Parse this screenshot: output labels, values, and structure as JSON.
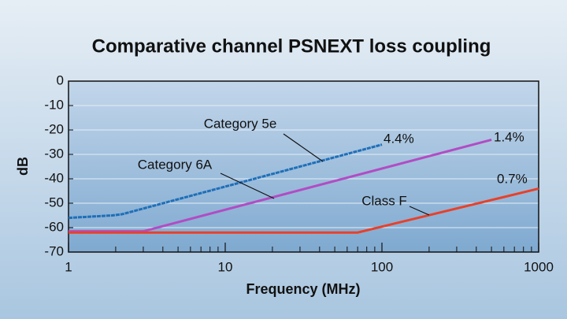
{
  "chart_data": {
    "type": "line",
    "title": "Comparative channel PSNEXT loss coupling",
    "xlabel": "Frequency (MHz)",
    "ylabel": "dB",
    "xscale": "log",
    "xlim": [
      1,
      1000
    ],
    "xticks": [
      1,
      10,
      100,
      1000
    ],
    "xminorticks": [
      2,
      3,
      4,
      5,
      6,
      7,
      8,
      9,
      20,
      30,
      40,
      50,
      60,
      70,
      80,
      90,
      200,
      300,
      400,
      500,
      600,
      700,
      800,
      900
    ],
    "ylim": [
      -70,
      0
    ],
    "yticks": [
      0,
      -10,
      -20,
      -30,
      -40,
      -50,
      -60,
      -70
    ],
    "grid": true,
    "series": [
      {
        "name": "Category 5e",
        "color": "#1f6fb8",
        "dashed": true,
        "x": [
          1,
          1.9,
          2.2,
          100
        ],
        "values": [
          -56,
          -55,
          -54.5,
          -26
        ],
        "end_label": "4.4%"
      },
      {
        "name": "Category 6A",
        "color": "#b24cc4",
        "x": [
          1,
          3,
          500
        ],
        "values": [
          -61.5,
          -61.5,
          -24
        ],
        "end_label": "1.4%"
      },
      {
        "name": "Class F",
        "color": "#e8402a",
        "x": [
          1,
          70,
          1000
        ],
        "values": [
          -62,
          -62,
          -44
        ],
        "end_label": "0.7%"
      }
    ]
  }
}
